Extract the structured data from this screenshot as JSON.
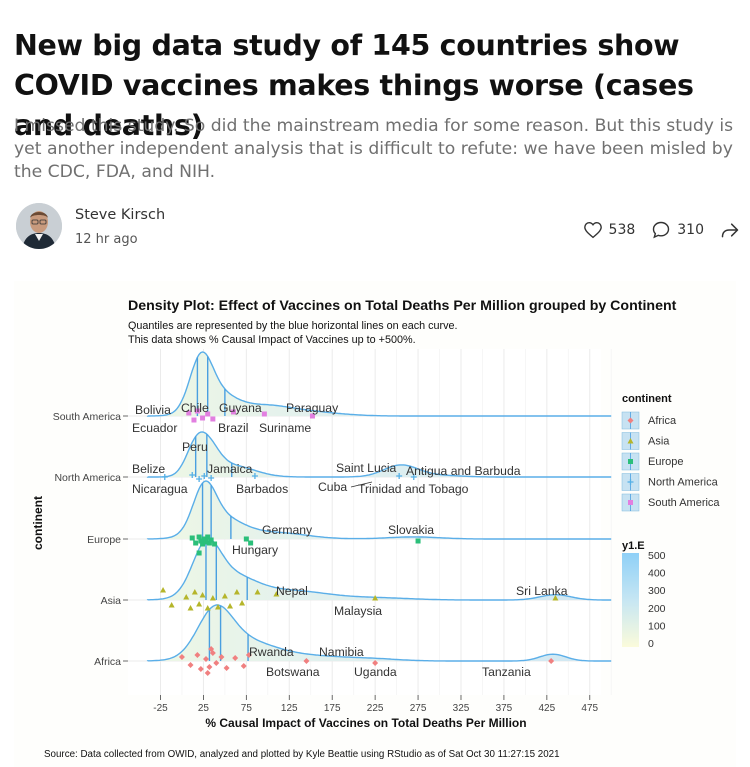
{
  "article": {
    "title": "New big data study of 145 countries show COVID vaccines makes things worse (cases and deaths)",
    "subtitle": "I missed this study. So did the mainstream media for some reason. But this study is yet another independent analysis that is difficult to refute: we have been misled by the CDC, FDA, and NIH.",
    "author": "Steve Kirsch",
    "time": "12 hr ago",
    "likes": "538",
    "comments": "310"
  },
  "icons": {
    "like": "heart-icon",
    "comment": "comment-bubble-icon",
    "share": "share-arrow-icon"
  },
  "chart_data": {
    "type": "density",
    "title": "Density Plot: Effect of Vaccines on Total Deaths Per Million grouped by Continent",
    "subtitle_1": "Quantiles are represented by the blue horizontal lines on each curve.",
    "subtitle_2": "This data shows % Causal Impact of Vaccines up to +500%.",
    "xlabel": "% Causal Impact of Vaccines on Total Deaths Per Million",
    "ylabel": "continent",
    "xlim": [
      -40,
      500
    ],
    "x_ticks": [
      "-25",
      "25",
      "75",
      "125",
      "175",
      "225",
      "275",
      "325",
      "375",
      "425",
      "475"
    ],
    "x_tick_values": [
      -25,
      25,
      75,
      125,
      175,
      225,
      275,
      325,
      375,
      425,
      475
    ],
    "categories": [
      "South America",
      "North America",
      "Europe",
      "Asia",
      "Africa"
    ],
    "legend_title": "continent",
    "legend_items": [
      "Africa",
      "Asia",
      "Europe",
      "North America",
      "South America"
    ],
    "colorbar_title": "y1.E",
    "colorbar_ticks": [
      "500",
      "400",
      "300",
      "200",
      "100",
      "0"
    ],
    "source": "Source: Data collected from OWID, analyzed and plotted by Kyle Beattie using RStudio as of Sat Oct 30 11:27:15 2021",
    "annotations": {
      "south_america": [
        "Bolivia",
        "Chile",
        "Guyana",
        "Paraguay",
        "Ecuador",
        "Peru",
        "Brazil",
        "Suriname"
      ],
      "north_america": [
        "Belize",
        "Jamaica",
        "Saint Lucia",
        "Antigua and Barbuda",
        "Nicaragua",
        "Barbados",
        "Cuba",
        "Trinidad and Tobago"
      ],
      "europe": [
        "Germany",
        "Slovakia",
        "Hungary"
      ],
      "asia": [
        "Nepal",
        "Sri Lanka",
        "Malaysia"
      ],
      "africa": [
        "Rwanda",
        "Namibia",
        "Botswana",
        "Uganda",
        "Tanzania"
      ]
    }
  }
}
